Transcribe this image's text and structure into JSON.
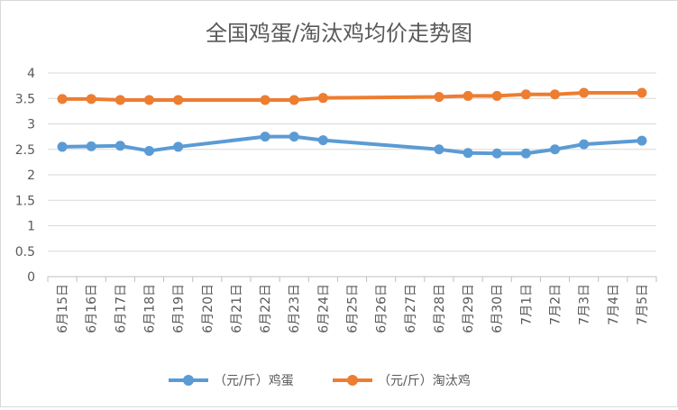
{
  "chart_data": {
    "type": "line",
    "title": "全国鸡蛋/淘汰鸡均价走势图",
    "xlabel": "",
    "ylabel": "",
    "ylim": [
      0,
      4
    ],
    "yticks": [
      "0",
      "0.5",
      "1",
      "1.5",
      "2",
      "2.5",
      "3",
      "3.5",
      "4"
    ],
    "grid": true,
    "legend_position": "bottom",
    "categories": [
      "6月15日",
      "6月16日",
      "6月17日",
      "6月18日",
      "6月19日",
      "6月20日",
      "6月21日",
      "6月22日",
      "6月23日",
      "6月24日",
      "6月25日",
      "6月26日",
      "6月27日",
      "6月28日",
      "6月29日",
      "6月30日",
      "7月1日",
      "7月2日",
      "7月3日",
      "7月4日",
      "7月5日"
    ],
    "series": [
      {
        "name": "（元/斤）鸡蛋",
        "color": "#5b9bd5",
        "values": [
          2.55,
          2.56,
          2.57,
          2.47,
          2.55,
          null,
          null,
          2.75,
          2.75,
          2.68,
          null,
          null,
          null,
          2.5,
          2.43,
          2.42,
          2.42,
          2.5,
          2.6,
          null,
          2.67
        ]
      },
      {
        "name": "（元/斤）淘汰鸡",
        "color": "#ed7d31",
        "values": [
          3.49,
          3.49,
          3.47,
          3.47,
          3.47,
          null,
          null,
          3.47,
          3.47,
          3.51,
          null,
          null,
          null,
          3.53,
          3.55,
          3.55,
          3.58,
          3.58,
          3.61,
          null,
          3.61
        ]
      }
    ]
  }
}
